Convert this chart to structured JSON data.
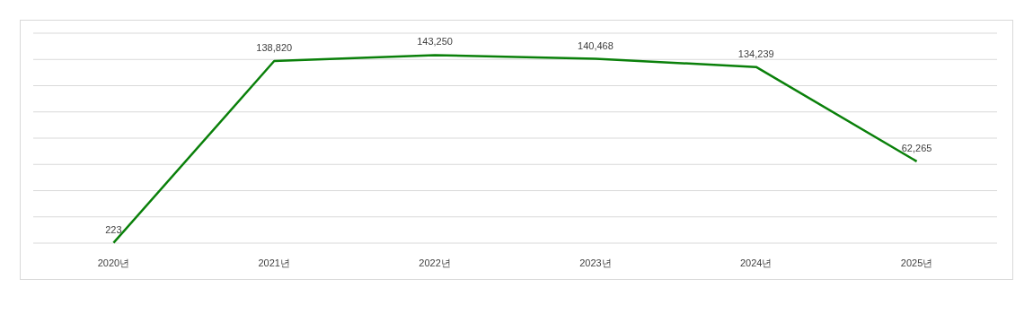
{
  "chart_data": {
    "type": "line",
    "categories": [
      "2020년",
      "2021년",
      "2022년",
      "2023년",
      "2024년",
      "2025년"
    ],
    "series": [
      {
        "color": "#0a800a",
        "values": [
          223,
          138820,
          143250,
          140468,
          134239,
          62265
        ],
        "value_labels": [
          "223",
          "138,820",
          "143,250",
          "140,468",
          "134,239",
          "62,265"
        ]
      }
    ],
    "ylim": [
      0,
      160000
    ],
    "yticks": [
      {
        "value": 0,
        "label": null
      },
      {
        "value": 20000,
        "label": null
      },
      {
        "value": 40000,
        "label": null
      },
      {
        "value": 60000,
        "label": null
      },
      {
        "value": 80000,
        "label": null
      },
      {
        "value": 100000,
        "label": null
      },
      {
        "value": 120000,
        "label": null
      },
      {
        "value": 140000,
        "label": null
      },
      {
        "value": 160000,
        "label": null
      }
    ],
    "grid": "y",
    "tick_labels": "x",
    "marker": "none",
    "line_style": "solid"
  }
}
